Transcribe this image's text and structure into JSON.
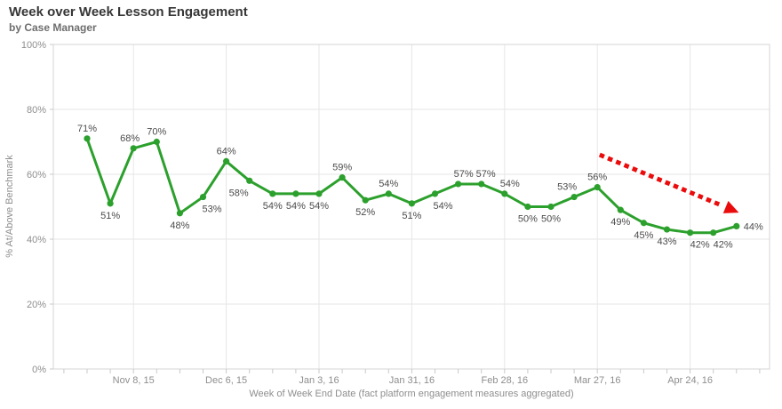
{
  "header": {
    "title": "Week over Week Lesson Engagement",
    "subtitle": "by Case Manager"
  },
  "chart_data": {
    "type": "line",
    "title": "Week over Week Lesson Engagement",
    "subtitle": "by Case Manager",
    "xlabel": "Week of Week End Date (fact platform engagement measures aggregated)",
    "ylabel": "% At/Above Benchmark",
    "ylim": [
      0,
      100
    ],
    "y_tick_labels": [
      "0%",
      "20%",
      "40%",
      "60%",
      "80%",
      "100%"
    ],
    "y_tick_values": [
      0,
      20,
      40,
      60,
      80,
      100
    ],
    "x_tick_labels": [
      "Nov 8, 15",
      "Dec 6, 15",
      "Jan 3, 16",
      "Jan 31, 16",
      "Feb 28, 16",
      "Mar 27, 16",
      "Apr 24, 16"
    ],
    "x_tick_indices": [
      2,
      6,
      10,
      14,
      18,
      22,
      26
    ],
    "n_points": 29,
    "series": [
      {
        "name": "% At/Above Benchmark",
        "values": [
          71,
          51,
          68,
          70,
          48,
          53,
          64,
          58,
          54,
          54,
          54,
          59,
          52,
          54,
          51,
          54,
          57,
          57,
          54,
          50,
          50,
          53,
          56,
          49,
          45,
          43,
          42,
          42,
          44
        ]
      }
    ],
    "point_labels": [
      "71%",
      "51%",
      "68%",
      "70%",
      "48%",
      "53%",
      "64%",
      "58%",
      "54%",
      "54%",
      "54%",
      "59%",
      "52%",
      "54%",
      "51%",
      "54%",
      "57%",
      "57%",
      "54%",
      "50%",
      "50%",
      "53%",
      "56%",
      "49%",
      "45%",
      "43%",
      "42%",
      "42%",
      "44%"
    ],
    "label_positions": [
      "above",
      "below",
      "above",
      "above",
      "below",
      "below",
      "above",
      "below",
      "below",
      "below",
      "below",
      "above",
      "below",
      "above",
      "below",
      "below",
      "above",
      "above",
      "above",
      "below",
      "below",
      "above",
      "above",
      "below",
      "below",
      "below",
      "below",
      "below",
      "right"
    ],
    "label_dx": [
      0,
      0,
      -4,
      0,
      0,
      10,
      0,
      -12,
      0,
      0,
      0,
      0,
      0,
      0,
      0,
      9,
      6,
      5,
      6,
      0,
      0,
      -8,
      0,
      0,
      0,
      0,
      11,
      11,
      0
    ],
    "grid": true,
    "legend": "none",
    "annotation": {
      "shape": "dashed-arrow",
      "from": {
        "week_index": 22.1,
        "value": 66.0
      },
      "to": {
        "week_index": 28.1,
        "value": 48.2
      }
    },
    "colors": {
      "line": "#2ca02c",
      "marker": "#2ca02c",
      "annotation_arrow": "#ea0c0c",
      "grid": "#e6e6e6",
      "axis": "#d6d6d6",
      "tick": "#c9c9c9",
      "label_text": "#4b4b4b",
      "axis_text": "#8e8e8e"
    }
  }
}
